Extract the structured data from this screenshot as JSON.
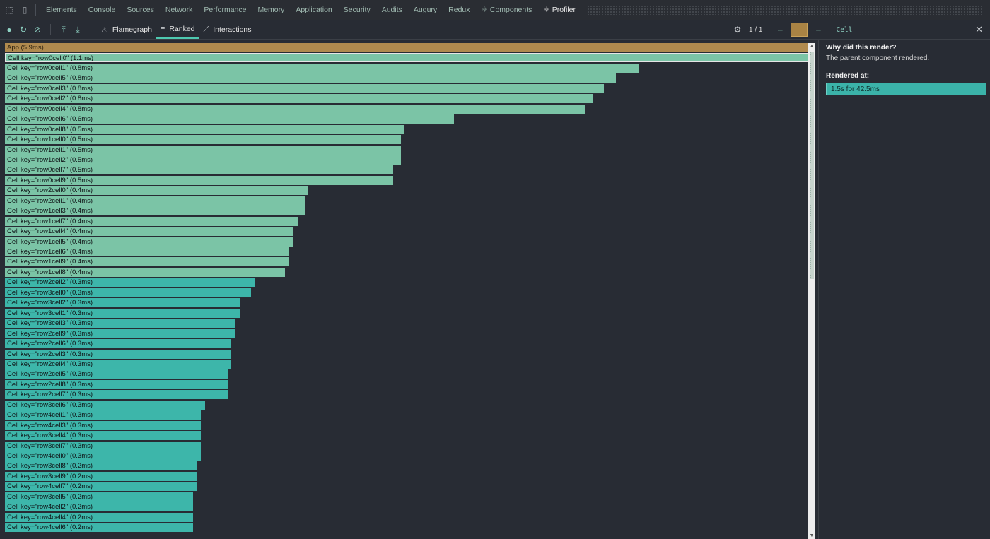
{
  "tabbar": {
    "tabs": [
      "Elements",
      "Console",
      "Sources",
      "Network",
      "Performance",
      "Memory",
      "Application",
      "Security",
      "Audits",
      "Augury",
      "Redux",
      "⚛ Components",
      "⚛ Profiler"
    ],
    "active": "⚛ Profiler"
  },
  "toolbar": {
    "modes": [
      {
        "name": "flamegraph",
        "label": "Flamegraph",
        "icon": "flame-icon"
      },
      {
        "name": "ranked",
        "label": "Ranked",
        "icon": "ranked-icon"
      },
      {
        "name": "interactions",
        "label": "Interactions",
        "icon": "interactions-icon"
      }
    ],
    "active_mode": "Ranked",
    "commit_counter": "1 / 1",
    "selected_component": "Cell"
  },
  "colors": {
    "app_bar": "#b08a4e",
    "warm_bar": "#7bc4a6",
    "cool_bar": "#3db6aa",
    "commit_box": "#a98344"
  },
  "ranked": {
    "bars": [
      {
        "label": "App (5.9ms)",
        "ms": 5.9,
        "w": 1.0,
        "kind": "app"
      },
      {
        "label": "Cell key=\"row0cell0\" (1.1ms)",
        "ms": 1.1,
        "w": 1.0,
        "kind": "warm"
      },
      {
        "label": "Cell key=\"row0cell1\" (0.8ms)",
        "ms": 0.8,
        "w": 0.79,
        "kind": "warm"
      },
      {
        "label": "Cell key=\"row0cell5\" (0.8ms)",
        "ms": 0.8,
        "w": 0.761,
        "kind": "warm"
      },
      {
        "label": "Cell key=\"row0cell3\" (0.8ms)",
        "ms": 0.8,
        "w": 0.746,
        "kind": "warm"
      },
      {
        "label": "Cell key=\"row0cell2\" (0.8ms)",
        "ms": 0.8,
        "w": 0.732,
        "kind": "warm"
      },
      {
        "label": "Cell key=\"row0cell4\" (0.8ms)",
        "ms": 0.8,
        "w": 0.722,
        "kind": "warm"
      },
      {
        "label": "Cell key=\"row0cell6\" (0.6ms)",
        "ms": 0.6,
        "w": 0.559,
        "kind": "warm"
      },
      {
        "label": "Cell key=\"row0cell8\" (0.5ms)",
        "ms": 0.5,
        "w": 0.497,
        "kind": "warm"
      },
      {
        "label": "Cell key=\"row1cell0\" (0.5ms)",
        "ms": 0.5,
        "w": 0.493,
        "kind": "warm"
      },
      {
        "label": "Cell key=\"row1cell1\" (0.5ms)",
        "ms": 0.5,
        "w": 0.493,
        "kind": "warm"
      },
      {
        "label": "Cell key=\"row1cell2\" (0.5ms)",
        "ms": 0.5,
        "w": 0.493,
        "kind": "warm"
      },
      {
        "label": "Cell key=\"row0cell7\" (0.5ms)",
        "ms": 0.5,
        "w": 0.483,
        "kind": "warm"
      },
      {
        "label": "Cell key=\"row0cell9\" (0.5ms)",
        "ms": 0.5,
        "w": 0.483,
        "kind": "warm"
      },
      {
        "label": "Cell key=\"row2cell0\" (0.4ms)",
        "ms": 0.4,
        "w": 0.378,
        "kind": "warm"
      },
      {
        "label": "Cell key=\"row2cell1\" (0.4ms)",
        "ms": 0.4,
        "w": 0.374,
        "kind": "warm"
      },
      {
        "label": "Cell key=\"row1cell3\" (0.4ms)",
        "ms": 0.4,
        "w": 0.374,
        "kind": "warm"
      },
      {
        "label": "Cell key=\"row1cell7\" (0.4ms)",
        "ms": 0.4,
        "w": 0.364,
        "kind": "warm"
      },
      {
        "label": "Cell key=\"row1cell4\" (0.4ms)",
        "ms": 0.4,
        "w": 0.359,
        "kind": "warm"
      },
      {
        "label": "Cell key=\"row1cell5\" (0.4ms)",
        "ms": 0.4,
        "w": 0.359,
        "kind": "warm"
      },
      {
        "label": "Cell key=\"row1cell6\" (0.4ms)",
        "ms": 0.4,
        "w": 0.354,
        "kind": "warm"
      },
      {
        "label": "Cell key=\"row1cell9\" (0.4ms)",
        "ms": 0.4,
        "w": 0.354,
        "kind": "warm"
      },
      {
        "label": "Cell key=\"row1cell8\" (0.4ms)",
        "ms": 0.4,
        "w": 0.349,
        "kind": "warm"
      },
      {
        "label": "Cell key=\"row2cell2\" (0.3ms)",
        "ms": 0.3,
        "w": 0.311,
        "kind": "cool"
      },
      {
        "label": "Cell key=\"row3cell0\" (0.3ms)",
        "ms": 0.3,
        "w": 0.306,
        "kind": "cool"
      },
      {
        "label": "Cell key=\"row3cell2\" (0.3ms)",
        "ms": 0.3,
        "w": 0.292,
        "kind": "cool"
      },
      {
        "label": "Cell key=\"row3cell1\" (0.3ms)",
        "ms": 0.3,
        "w": 0.292,
        "kind": "cool"
      },
      {
        "label": "Cell key=\"row3cell3\" (0.3ms)",
        "ms": 0.3,
        "w": 0.287,
        "kind": "cool"
      },
      {
        "label": "Cell key=\"row2cell9\" (0.3ms)",
        "ms": 0.3,
        "w": 0.287,
        "kind": "cool"
      },
      {
        "label": "Cell key=\"row2cell6\" (0.3ms)",
        "ms": 0.3,
        "w": 0.282,
        "kind": "cool"
      },
      {
        "label": "Cell key=\"row2cell3\" (0.3ms)",
        "ms": 0.3,
        "w": 0.282,
        "kind": "cool"
      },
      {
        "label": "Cell key=\"row2cell4\" (0.3ms)",
        "ms": 0.3,
        "w": 0.282,
        "kind": "cool"
      },
      {
        "label": "Cell key=\"row2cell5\" (0.3ms)",
        "ms": 0.3,
        "w": 0.278,
        "kind": "cool"
      },
      {
        "label": "Cell key=\"row2cell8\" (0.3ms)",
        "ms": 0.3,
        "w": 0.278,
        "kind": "cool"
      },
      {
        "label": "Cell key=\"row2cell7\" (0.3ms)",
        "ms": 0.3,
        "w": 0.278,
        "kind": "cool"
      },
      {
        "label": "Cell key=\"row3cell6\" (0.3ms)",
        "ms": 0.3,
        "w": 0.249,
        "kind": "cool"
      },
      {
        "label": "Cell key=\"row4cell1\" (0.3ms)",
        "ms": 0.3,
        "w": 0.244,
        "kind": "cool"
      },
      {
        "label": "Cell key=\"row4cell3\" (0.3ms)",
        "ms": 0.3,
        "w": 0.244,
        "kind": "cool"
      },
      {
        "label": "Cell key=\"row3cell4\" (0.3ms)",
        "ms": 0.3,
        "w": 0.244,
        "kind": "cool"
      },
      {
        "label": "Cell key=\"row3cell7\" (0.3ms)",
        "ms": 0.3,
        "w": 0.244,
        "kind": "cool"
      },
      {
        "label": "Cell key=\"row4cell0\" (0.3ms)",
        "ms": 0.3,
        "w": 0.244,
        "kind": "cool"
      },
      {
        "label": "Cell key=\"row3cell8\" (0.2ms)",
        "ms": 0.2,
        "w": 0.239,
        "kind": "cool"
      },
      {
        "label": "Cell key=\"row3cell9\" (0.2ms)",
        "ms": 0.2,
        "w": 0.239,
        "kind": "cool"
      },
      {
        "label": "Cell key=\"row4cell7\" (0.2ms)",
        "ms": 0.2,
        "w": 0.239,
        "kind": "cool"
      },
      {
        "label": "Cell key=\"row3cell5\" (0.2ms)",
        "ms": 0.2,
        "w": 0.234,
        "kind": "cool"
      },
      {
        "label": "Cell key=\"row4cell2\" (0.2ms)",
        "ms": 0.2,
        "w": 0.234,
        "kind": "cool"
      },
      {
        "label": "Cell key=\"row4cell4\" (0.2ms)",
        "ms": 0.2,
        "w": 0.234,
        "kind": "cool"
      },
      {
        "label": "Cell key=\"row4cell6\" (0.2ms)",
        "ms": 0.2,
        "w": 0.234,
        "kind": "cool"
      }
    ]
  },
  "sidebar": {
    "why_heading": "Why did this render?",
    "why_text": "The parent component rendered.",
    "rendered_heading": "Rendered at:",
    "commit_label": "1.5s for 42.5ms"
  }
}
